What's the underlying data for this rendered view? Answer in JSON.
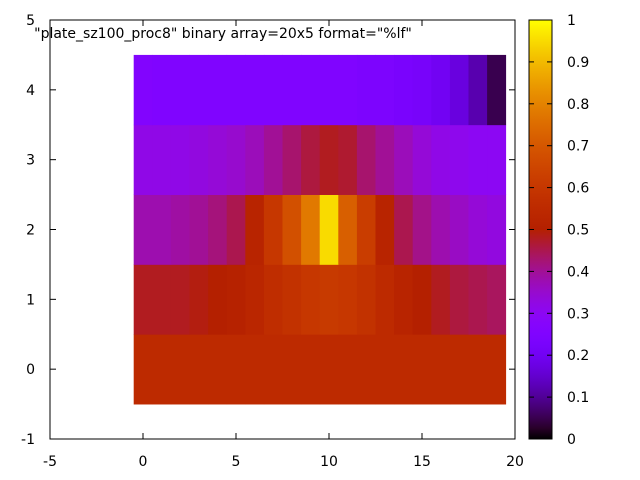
{
  "chart_data": {
    "type": "heatmap",
    "title": "",
    "key_label": "\"plate_sz100_proc8\" binary array=20x5 format=\"%lf\"",
    "xlabel": "",
    "ylabel": "",
    "xlim": [
      -5,
      20
    ],
    "ylim": [
      -1,
      5
    ],
    "x_ticks": [
      "-5",
      "0",
      "5",
      "10",
      "15",
      "20"
    ],
    "y_ticks": [
      "-1",
      "0",
      "1",
      "2",
      "3",
      "4",
      "5"
    ],
    "x_tick_values": [
      -5,
      0,
      5,
      10,
      15,
      20
    ],
    "y_tick_values": [
      -1,
      0,
      1,
      2,
      3,
      4,
      5
    ],
    "colorbar": {
      "range": [
        0,
        1
      ],
      "ticks": [
        "0",
        "0.1",
        "0.2",
        "0.3",
        "0.4",
        "0.5",
        "0.6",
        "0.7",
        "0.8",
        "0.9",
        "1"
      ],
      "tick_values": [
        0,
        0.1,
        0.2,
        0.3,
        0.4,
        0.5,
        0.6,
        0.7,
        0.8,
        0.9,
        1.0
      ],
      "palette": "black-blue-violet-red-orange-yellow"
    },
    "grid": false,
    "columns": 20,
    "rows": 5,
    "values": [
      [
        0.55,
        0.55,
        0.55,
        0.55,
        0.55,
        0.55,
        0.55,
        0.55,
        0.55,
        0.55,
        0.55,
        0.55,
        0.55,
        0.55,
        0.55,
        0.55,
        0.55,
        0.55,
        0.55,
        0.55
      ],
      [
        0.48,
        0.48,
        0.48,
        0.49,
        0.5,
        0.51,
        0.53,
        0.56,
        0.58,
        0.6,
        0.61,
        0.6,
        0.58,
        0.55,
        0.52,
        0.5,
        0.48,
        0.46,
        0.45,
        0.44
      ],
      [
        0.38,
        0.38,
        0.39,
        0.4,
        0.42,
        0.45,
        0.52,
        0.6,
        0.68,
        0.78,
        0.95,
        0.72,
        0.62,
        0.52,
        0.45,
        0.41,
        0.38,
        0.36,
        0.34,
        0.33
      ],
      [
        0.32,
        0.32,
        0.32,
        0.33,
        0.34,
        0.35,
        0.37,
        0.4,
        0.43,
        0.46,
        0.48,
        0.47,
        0.43,
        0.4,
        0.37,
        0.34,
        0.32,
        0.31,
        0.3,
        0.3
      ],
      [
        0.26,
        0.25,
        0.25,
        0.25,
        0.25,
        0.25,
        0.25,
        0.25,
        0.25,
        0.25,
        0.25,
        0.25,
        0.24,
        0.24,
        0.23,
        0.22,
        0.2,
        0.17,
        0.12,
        0.05
      ]
    ]
  }
}
